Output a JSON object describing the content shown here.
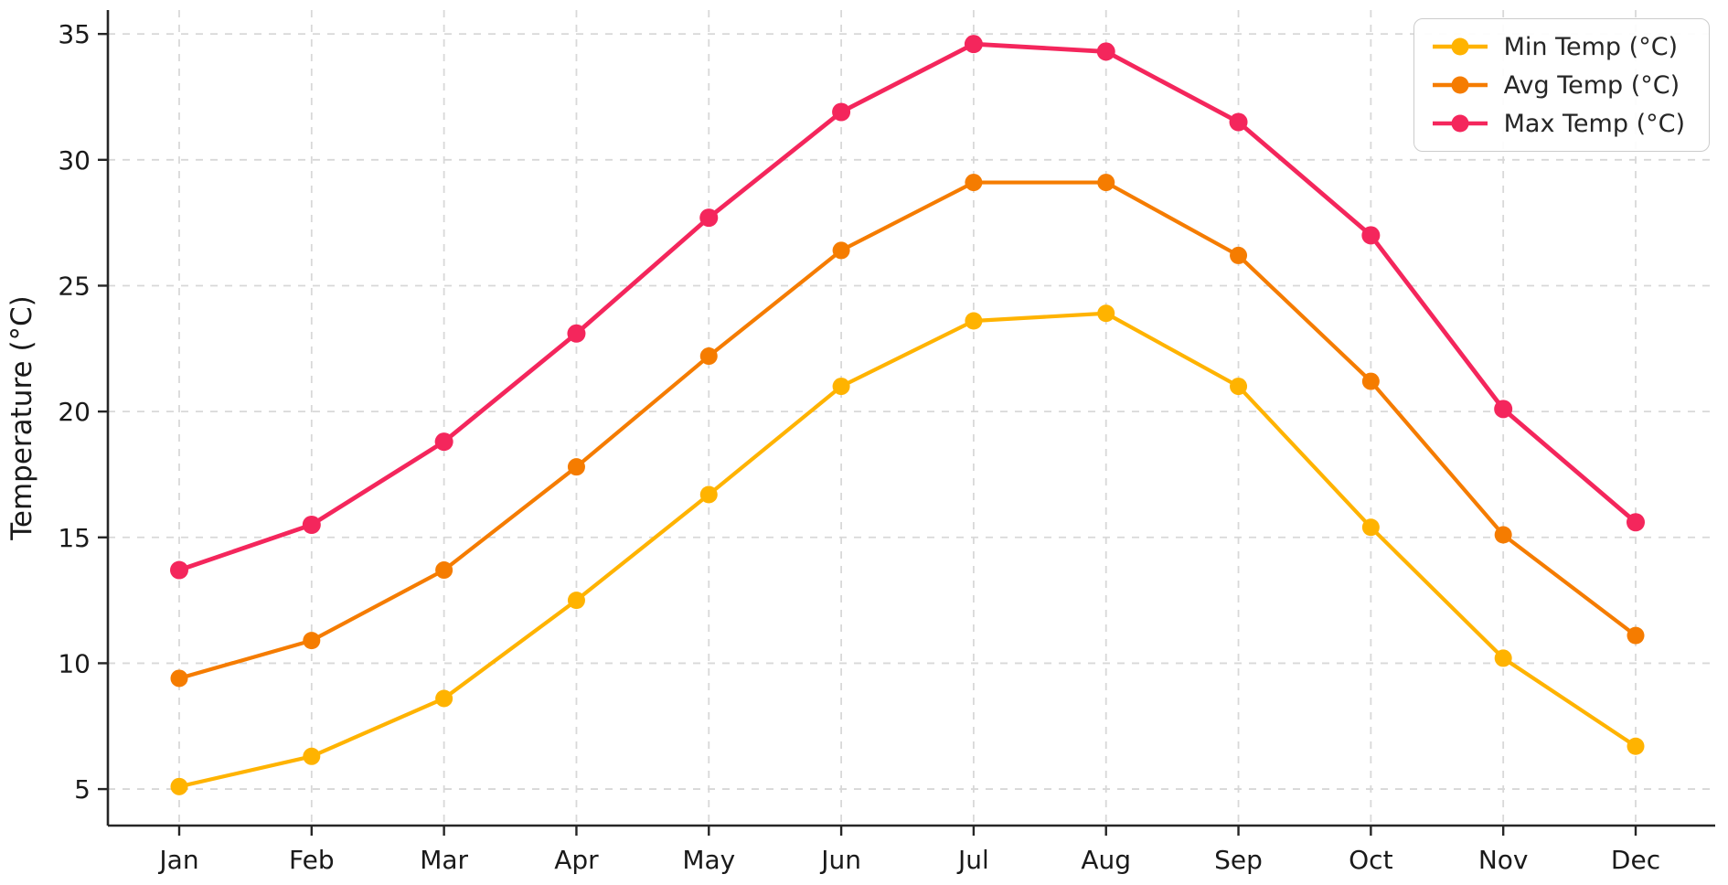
{
  "chart_data": {
    "type": "line",
    "title": "",
    "xlabel": "",
    "ylabel": "Temperature (°C)",
    "categories": [
      "Jan",
      "Feb",
      "Mar",
      "Apr",
      "May",
      "Jun",
      "Jul",
      "Aug",
      "Sep",
      "Oct",
      "Nov",
      "Dec"
    ],
    "series": [
      {
        "name": "Min Temp (°C)",
        "color": "#FFB300",
        "values": [
          5.1,
          6.3,
          8.6,
          12.5,
          16.7,
          21.0,
          23.6,
          23.9,
          21.0,
          15.4,
          10.2,
          6.7
        ]
      },
      {
        "name": "Avg Temp (°C)",
        "color": "#F57C00",
        "values": [
          9.4,
          10.9,
          13.7,
          17.8,
          22.2,
          26.4,
          29.1,
          29.1,
          26.2,
          21.2,
          15.1,
          11.1
        ]
      },
      {
        "name": "Max Temp (°C)",
        "color": "#F4265C",
        "values": [
          13.7,
          15.5,
          18.8,
          23.1,
          27.7,
          31.9,
          34.6,
          34.3,
          31.5,
          27.0,
          20.1,
          15.6
        ]
      }
    ],
    "ylim": [
      3.55,
      35.95
    ],
    "yticks": [
      5,
      10,
      15,
      20,
      25,
      30,
      35
    ],
    "grid": true,
    "grid_style": "dashed",
    "legend_position": "top-right",
    "axis_color": "#262626",
    "grid_color": "#d8d8d8"
  }
}
